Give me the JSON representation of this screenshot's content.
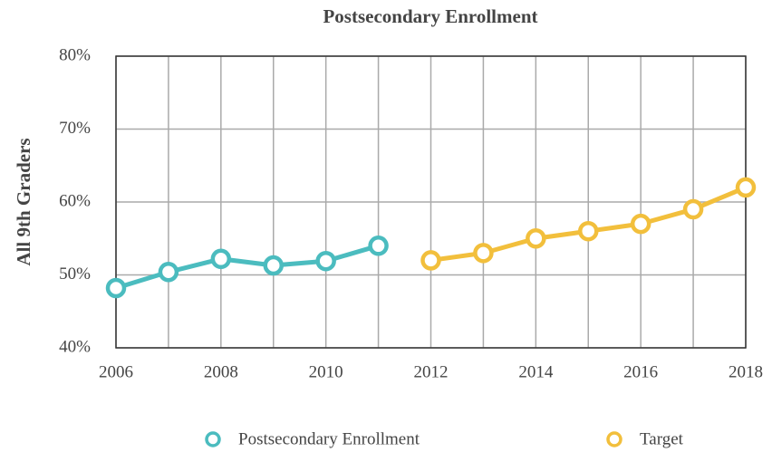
{
  "chart_data": {
    "type": "line",
    "title": "Postsecondary Enrollment",
    "y_label": "All 9th Graders",
    "x": [
      2006,
      2007,
      2008,
      2009,
      2010,
      2011,
      2012,
      2013,
      2014,
      2015,
      2016,
      2017,
      2018
    ],
    "series": [
      {
        "name": "Postsecondary Enrollment",
        "color": "#4bbcbf",
        "values": [
          48.2,
          50.4,
          52.2,
          51.3,
          51.9,
          54,
          null,
          null,
          null,
          null,
          null,
          null,
          null
        ]
      },
      {
        "name": "Target",
        "color": "#f2bf3c",
        "values": [
          null,
          null,
          null,
          null,
          null,
          null,
          52,
          53,
          55,
          56,
          57,
          59,
          62
        ]
      }
    ],
    "xlim": [
      2006,
      2018
    ],
    "xticks": [
      2006,
      2008,
      2010,
      2012,
      2014,
      2016,
      2018
    ],
    "ylim": [
      40,
      80
    ],
    "yticks": [
      {
        "value": 40,
        "label": "40%"
      },
      {
        "value": 50,
        "label": "50%"
      },
      {
        "value": 60,
        "label": "60%"
      },
      {
        "value": 70,
        "label": "70%"
      },
      {
        "value": 80,
        "label": "80%"
      }
    ],
    "grid": true,
    "legend": "bottom"
  }
}
